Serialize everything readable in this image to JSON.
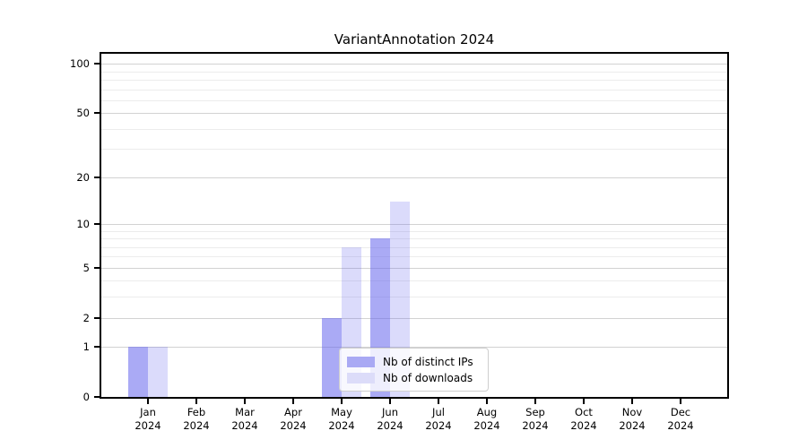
{
  "chart_data": {
    "type": "bar",
    "title": "VariantAnnotation 2024",
    "x_year": "2024",
    "categories": [
      "Jan",
      "Feb",
      "Mar",
      "Apr",
      "May",
      "Jun",
      "Jul",
      "Aug",
      "Sep",
      "Oct",
      "Nov",
      "Dec"
    ],
    "series": [
      {
        "name": "Nb of distinct IPs",
        "values": [
          1,
          0,
          0,
          0,
          2,
          8,
          0,
          0,
          0,
          0,
          0,
          0
        ],
        "fill": "rgba(100,100,237,0.55)",
        "legend_color": "#a9a9f4"
      },
      {
        "name": "Nb of downloads",
        "values": [
          1,
          0,
          0,
          0,
          7,
          14,
          0,
          0,
          0,
          0,
          0,
          0
        ],
        "fill": "rgba(100,100,237,0.23)",
        "legend_color": "#dcdcf9"
      }
    ],
    "yscale": "log1p",
    "ylim": [
      0,
      115
    ],
    "ytick_values": [
      0,
      1,
      2,
      5,
      10,
      20,
      50,
      100
    ],
    "minor_gridline_values": [
      3,
      4,
      6,
      7,
      8,
      9,
      30,
      40,
      60,
      70,
      80,
      90
    ],
    "grid": true,
    "legend_position": "lower center, inside plot",
    "legend_entries": [
      "Nb of distinct IPs",
      "Nb of downloads"
    ]
  },
  "colors": {
    "axis": "#000000",
    "grid_major": "#d2d2d2",
    "grid_minor": "#ececec",
    "background": "#ffffff"
  }
}
